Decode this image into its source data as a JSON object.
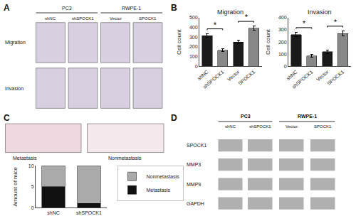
{
  "chart_data": [
    {
      "type": "image",
      "annotations": [
        "A",
        "PC3",
        "RWPE-1",
        "shNC",
        "shSPOCK1",
        "Vector",
        "SPOCK1",
        "Migration",
        "Invasion"
      ]
    },
    {
      "type": "bar",
      "title": "Migration",
      "ylabel": "Cell count",
      "categories": [
        "shNC",
        "shSPOCK1",
        "Vector",
        "SPOCK1"
      ],
      "values": [
        315,
        165,
        248,
        390
      ],
      "errors": [
        20,
        15,
        18,
        22
      ],
      "colors": [
        "#1a1a1a",
        "#888888",
        "#1a1a1a",
        "#888888"
      ],
      "ylim": [
        0,
        500
      ],
      "yticks": [
        0,
        100,
        200,
        300,
        400,
        500
      ],
      "grid": false,
      "annotations": [
        {
          "text": "B"
        },
        {
          "text": "*",
          "x": [
            "shNC",
            "shSPOCK1"
          ]
        },
        {
          "text": "*",
          "x": [
            "Vector",
            "SPOCK1"
          ]
        }
      ]
    },
    {
      "type": "bar",
      "title": "Invasion",
      "ylabel": "Cell count",
      "categories": [
        "shNC",
        "shSPOCK1",
        "Vector",
        "SPOCK1"
      ],
      "values": [
        260,
        85,
        120,
        270
      ],
      "errors": [
        18,
        12,
        14,
        20
      ],
      "colors": [
        "#1a1a1a",
        "#888888",
        "#1a1a1a",
        "#888888"
      ],
      "ylim": [
        0,
        400
      ],
      "yticks": [
        0,
        100,
        200,
        300,
        400
      ],
      "grid": false,
      "annotations": [
        {
          "text": "*",
          "x": [
            "shNC",
            "shSPOCK1"
          ]
        },
        {
          "text": "*",
          "x": [
            "Vector",
            "SPOCK1"
          ]
        }
      ]
    },
    {
      "type": "image",
      "annotations": [
        "C",
        "Metastasis",
        "Nonmetastasis"
      ]
    },
    {
      "type": "bar",
      "ylabel": "Amount of mice",
      "categories": [
        "shNC",
        "shSPOCK1"
      ],
      "series": [
        {
          "name": "Metastasis",
          "color": "#111111",
          "values": [
            5,
            1
          ]
        },
        {
          "name": "Nonmetastasis",
          "color": "#aaaaaa",
          "values": [
            5,
            9
          ]
        }
      ],
      "stacked": true,
      "ylim": [
        0,
        10
      ],
      "yticks": [
        0,
        5,
        10
      ],
      "grid": false,
      "legend": "right"
    },
    {
      "type": "image",
      "annotations": [
        "D",
        "PC3",
        "RWPE-1",
        "shNC",
        "shSPOCK1",
        "Vector",
        "SPOCK1",
        "SPOCK1",
        "MMP3",
        "MMP9",
        "GAPDH"
      ]
    }
  ]
}
